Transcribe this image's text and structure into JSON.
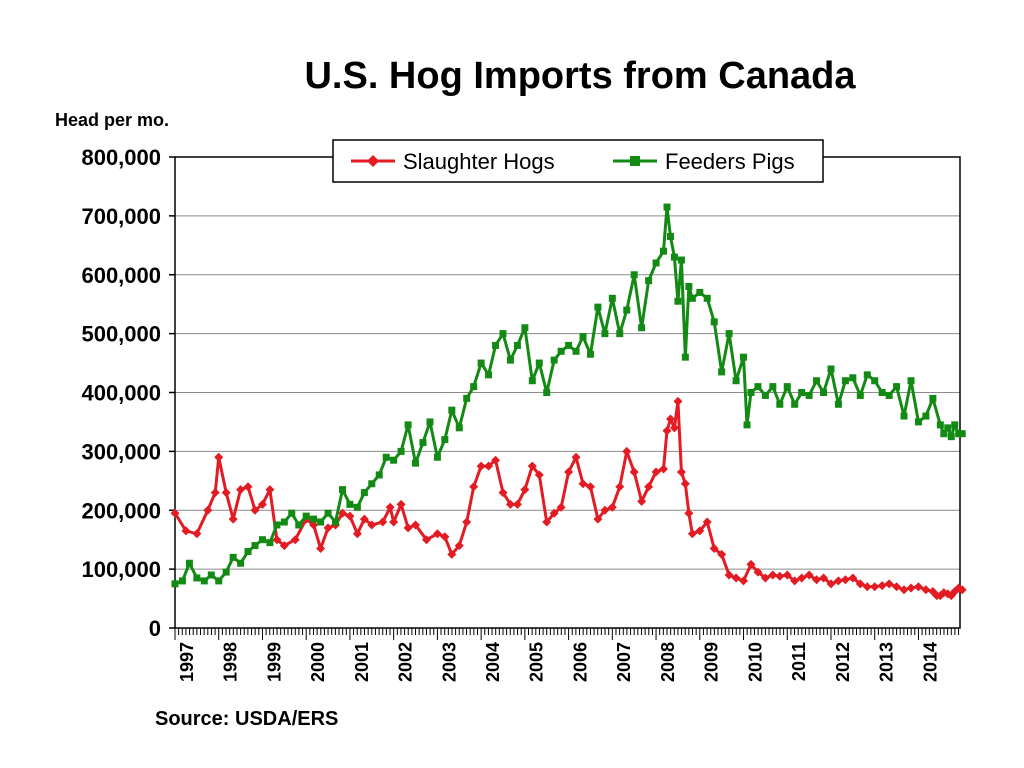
{
  "chart_data": {
    "type": "line",
    "title": "U.S. Hog Imports from Canada",
    "ylabel": "Head per mo.",
    "source": "Source: USDA/ERS",
    "ylim": [
      0,
      800000
    ],
    "xlim": [
      1997.0,
      2014.5
    ],
    "grid": true,
    "legend_position": "top-center",
    "y_ticks": [
      "0",
      "100,000",
      "200,000",
      "300,000",
      "400,000",
      "500,000",
      "600,000",
      "700,000",
      "800,000"
    ],
    "x_ticks": [
      "1997",
      "1998",
      "1999",
      "2000",
      "2001",
      "2002",
      "2003",
      "2004",
      "2005",
      "2006",
      "2007",
      "2008",
      "2009",
      "2010",
      "2011",
      "2012",
      "2013",
      "2014"
    ],
    "series": [
      {
        "name": "Slaughter Hogs",
        "color": "#e31b23",
        "marker": "diamond",
        "points": [
          [
            1997.0,
            195000
          ],
          [
            1997.25,
            165000
          ],
          [
            1997.5,
            160000
          ],
          [
            1997.75,
            200000
          ],
          [
            1997.92,
            230000
          ],
          [
            1998.0,
            290000
          ],
          [
            1998.17,
            230000
          ],
          [
            1998.33,
            185000
          ],
          [
            1998.5,
            235000
          ],
          [
            1998.67,
            240000
          ],
          [
            1998.83,
            200000
          ],
          [
            1999.0,
            210000
          ],
          [
            1999.17,
            235000
          ],
          [
            1999.33,
            150000
          ],
          [
            1999.5,
            140000
          ],
          [
            1999.75,
            150000
          ],
          [
            2000.0,
            185000
          ],
          [
            2000.17,
            175000
          ],
          [
            2000.33,
            135000
          ],
          [
            2000.5,
            170000
          ],
          [
            2000.67,
            175000
          ],
          [
            2000.83,
            195000
          ],
          [
            2001.0,
            190000
          ],
          [
            2001.17,
            160000
          ],
          [
            2001.33,
            185000
          ],
          [
            2001.5,
            175000
          ],
          [
            2001.75,
            180000
          ],
          [
            2001.92,
            205000
          ],
          [
            2002.0,
            180000
          ],
          [
            2002.17,
            210000
          ],
          [
            2002.33,
            170000
          ],
          [
            2002.5,
            175000
          ],
          [
            2002.75,
            150000
          ],
          [
            2003.0,
            160000
          ],
          [
            2003.17,
            155000
          ],
          [
            2003.33,
            125000
          ],
          [
            2003.5,
            140000
          ],
          [
            2003.67,
            180000
          ],
          [
            2003.83,
            240000
          ],
          [
            2004.0,
            275000
          ],
          [
            2004.17,
            275000
          ],
          [
            2004.33,
            285000
          ],
          [
            2004.5,
            230000
          ],
          [
            2004.67,
            210000
          ],
          [
            2004.83,
            210000
          ],
          [
            2005.0,
            235000
          ],
          [
            2005.17,
            275000
          ],
          [
            2005.33,
            260000
          ],
          [
            2005.5,
            180000
          ],
          [
            2005.67,
            195000
          ],
          [
            2005.83,
            205000
          ],
          [
            2006.0,
            265000
          ],
          [
            2006.17,
            290000
          ],
          [
            2006.33,
            245000
          ],
          [
            2006.5,
            240000
          ],
          [
            2006.67,
            185000
          ],
          [
            2006.83,
            200000
          ],
          [
            2007.0,
            205000
          ],
          [
            2007.17,
            240000
          ],
          [
            2007.33,
            300000
          ],
          [
            2007.5,
            265000
          ],
          [
            2007.67,
            215000
          ],
          [
            2007.83,
            240000
          ],
          [
            2008.0,
            265000
          ],
          [
            2008.17,
            270000
          ],
          [
            2008.25,
            335000
          ],
          [
            2008.33,
            355000
          ],
          [
            2008.42,
            340000
          ],
          [
            2008.5,
            385000
          ],
          [
            2008.58,
            265000
          ],
          [
            2008.67,
            245000
          ],
          [
            2008.75,
            195000
          ],
          [
            2008.83,
            160000
          ],
          [
            2009.0,
            165000
          ],
          [
            2009.17,
            180000
          ],
          [
            2009.33,
            135000
          ],
          [
            2009.5,
            125000
          ],
          [
            2009.67,
            90000
          ],
          [
            2009.83,
            85000
          ],
          [
            2010.0,
            80000
          ],
          [
            2010.17,
            108000
          ],
          [
            2010.33,
            95000
          ],
          [
            2010.5,
            85000
          ],
          [
            2010.67,
            90000
          ],
          [
            2010.83,
            88000
          ],
          [
            2011.0,
            90000
          ],
          [
            2011.17,
            80000
          ],
          [
            2011.33,
            85000
          ],
          [
            2011.5,
            90000
          ],
          [
            2011.67,
            82000
          ],
          [
            2011.83,
            85000
          ],
          [
            2012.0,
            75000
          ],
          [
            2012.17,
            80000
          ],
          [
            2012.33,
            82000
          ],
          [
            2012.5,
            85000
          ],
          [
            2012.67,
            75000
          ],
          [
            2012.83,
            70000
          ],
          [
            2013.0,
            70000
          ],
          [
            2013.17,
            72000
          ],
          [
            2013.33,
            75000
          ],
          [
            2013.5,
            70000
          ],
          [
            2013.67,
            65000
          ],
          [
            2013.83,
            68000
          ],
          [
            2014.0,
            70000
          ],
          [
            2014.17,
            65000
          ],
          [
            2014.33,
            62000
          ],
          [
            2014.42,
            55000
          ],
          [
            2014.5,
            55000
          ],
          [
            2014.58,
            60000
          ],
          [
            2014.67,
            58000
          ],
          [
            2014.75,
            55000
          ],
          [
            2014.83,
            62000
          ],
          [
            2014.92,
            68000
          ],
          [
            2015.0,
            65000
          ]
        ]
      },
      {
        "name": "Feeders Pigs",
        "color": "#138a13",
        "marker": "square",
        "points": [
          [
            1997.0,
            75000
          ],
          [
            1997.17,
            80000
          ],
          [
            1997.33,
            110000
          ],
          [
            1997.5,
            85000
          ],
          [
            1997.67,
            80000
          ],
          [
            1997.83,
            90000
          ],
          [
            1998.0,
            80000
          ],
          [
            1998.17,
            95000
          ],
          [
            1998.33,
            120000
          ],
          [
            1998.5,
            110000
          ],
          [
            1998.67,
            130000
          ],
          [
            1998.83,
            140000
          ],
          [
            1999.0,
            150000
          ],
          [
            1999.17,
            145000
          ],
          [
            1999.33,
            175000
          ],
          [
            1999.5,
            180000
          ],
          [
            1999.67,
            195000
          ],
          [
            1999.83,
            175000
          ],
          [
            2000.0,
            190000
          ],
          [
            2000.17,
            185000
          ],
          [
            2000.33,
            180000
          ],
          [
            2000.5,
            195000
          ],
          [
            2000.67,
            180000
          ],
          [
            2000.83,
            235000
          ],
          [
            2001.0,
            210000
          ],
          [
            2001.17,
            205000
          ],
          [
            2001.33,
            230000
          ],
          [
            2001.5,
            245000
          ],
          [
            2001.67,
            260000
          ],
          [
            2001.83,
            290000
          ],
          [
            2002.0,
            285000
          ],
          [
            2002.17,
            300000
          ],
          [
            2002.33,
            345000
          ],
          [
            2002.5,
            280000
          ],
          [
            2002.67,
            315000
          ],
          [
            2002.83,
            350000
          ],
          [
            2003.0,
            290000
          ],
          [
            2003.17,
            320000
          ],
          [
            2003.33,
            370000
          ],
          [
            2003.5,
            340000
          ],
          [
            2003.67,
            390000
          ],
          [
            2003.83,
            410000
          ],
          [
            2004.0,
            450000
          ],
          [
            2004.17,
            430000
          ],
          [
            2004.33,
            480000
          ],
          [
            2004.5,
            500000
          ],
          [
            2004.67,
            455000
          ],
          [
            2004.83,
            480000
          ],
          [
            2005.0,
            510000
          ],
          [
            2005.17,
            420000
          ],
          [
            2005.33,
            450000
          ],
          [
            2005.5,
            400000
          ],
          [
            2005.67,
            455000
          ],
          [
            2005.83,
            470000
          ],
          [
            2006.0,
            480000
          ],
          [
            2006.17,
            470000
          ],
          [
            2006.33,
            495000
          ],
          [
            2006.5,
            465000
          ],
          [
            2006.67,
            545000
          ],
          [
            2006.83,
            500000
          ],
          [
            2007.0,
            560000
          ],
          [
            2007.17,
            500000
          ],
          [
            2007.33,
            540000
          ],
          [
            2007.5,
            600000
          ],
          [
            2007.67,
            510000
          ],
          [
            2007.83,
            590000
          ],
          [
            2008.0,
            620000
          ],
          [
            2008.17,
            640000
          ],
          [
            2008.25,
            715000
          ],
          [
            2008.33,
            665000
          ],
          [
            2008.42,
            630000
          ],
          [
            2008.5,
            555000
          ],
          [
            2008.58,
            625000
          ],
          [
            2008.67,
            460000
          ],
          [
            2008.75,
            580000
          ],
          [
            2008.83,
            560000
          ],
          [
            2009.0,
            570000
          ],
          [
            2009.17,
            560000
          ],
          [
            2009.33,
            520000
          ],
          [
            2009.5,
            435000
          ],
          [
            2009.67,
            500000
          ],
          [
            2009.83,
            420000
          ],
          [
            2010.0,
            460000
          ],
          [
            2010.08,
            345000
          ],
          [
            2010.17,
            400000
          ],
          [
            2010.33,
            410000
          ],
          [
            2010.5,
            395000
          ],
          [
            2010.67,
            410000
          ],
          [
            2010.83,
            380000
          ],
          [
            2011.0,
            410000
          ],
          [
            2011.17,
            380000
          ],
          [
            2011.33,
            400000
          ],
          [
            2011.5,
            395000
          ],
          [
            2011.67,
            420000
          ],
          [
            2011.83,
            400000
          ],
          [
            2012.0,
            440000
          ],
          [
            2012.17,
            380000
          ],
          [
            2012.33,
            420000
          ],
          [
            2012.5,
            425000
          ],
          [
            2012.67,
            395000
          ],
          [
            2012.83,
            430000
          ],
          [
            2013.0,
            420000
          ],
          [
            2013.17,
            400000
          ],
          [
            2013.33,
            395000
          ],
          [
            2013.5,
            410000
          ],
          [
            2013.67,
            360000
          ],
          [
            2013.83,
            420000
          ],
          [
            2014.0,
            350000
          ],
          [
            2014.17,
            360000
          ],
          [
            2014.33,
            390000
          ],
          [
            2014.5,
            345000
          ],
          [
            2014.58,
            330000
          ],
          [
            2014.67,
            340000
          ],
          [
            2014.75,
            325000
          ],
          [
            2014.83,
            345000
          ],
          [
            2014.92,
            330000
          ],
          [
            2015.0,
            330000
          ]
        ]
      }
    ]
  }
}
